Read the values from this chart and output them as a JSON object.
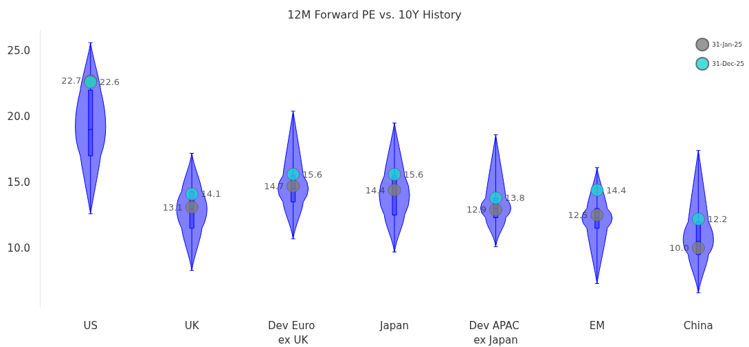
{
  "chart_data": {
    "type": "box",
    "title": "12M Forward PE vs. 10Y History",
    "categories": [
      "US",
      "UK",
      "Dev Euro ex UK",
      "Japan",
      "Dev APAC ex Japan",
      "EM",
      "China"
    ],
    "color": "#0000ff",
    "boxes": [
      {
        "low": 12.6,
        "q1": 17,
        "median": 19,
        "q3": 22,
        "high": 25.6
      },
      {
        "low": 8.3,
        "q1": 11.5,
        "median": 13,
        "q3": 14.3,
        "high": 17.2
      },
      {
        "low": 10.7,
        "q1": 13.5,
        "median": 14.5,
        "q3": 15.5,
        "high": 20.4
      },
      {
        "low": 9.7,
        "q1": 12.5,
        "median": 14,
        "q3": 15.5,
        "high": 19.5
      },
      {
        "low": 10.1,
        "q1": 12.3,
        "median": 13,
        "q3": 13.8,
        "high": 18.6
      },
      {
        "low": 7.3,
        "q1": 11.5,
        "median": 12.3,
        "q3": 13,
        "high": 16.1
      },
      {
        "low": 6.6,
        "q1": 9.5,
        "median": 10.5,
        "q3": 12,
        "high": 17.4
      }
    ],
    "series": [
      {
        "name": "31-Jan-25",
        "type": "scatter",
        "color": "#808080",
        "x": [
          "US",
          "UK",
          "Dev Euro ex UK",
          "Japan",
          "Dev APAC ex Japan",
          "EM",
          "China"
        ],
        "values": [
          22.7,
          13.1,
          14.7,
          14.4,
          12.9,
          12.5,
          10.0
        ],
        "value_labels": [
          "22.7",
          "13.1",
          "14.7",
          "14.4",
          "12.9",
          "12.5",
          "10.0"
        ]
      },
      {
        "name": "31-Dec-25",
        "type": "scatter",
        "color": "#1fd3d6",
        "x": [
          "US",
          "UK",
          "Dev Euro ex UK",
          "Japan",
          "Dev APAC ex Japan",
          "EM",
          "China"
        ],
        "values": [
          22.6,
          14.1,
          15.6,
          15.6,
          13.8,
          14.4,
          12.2
        ],
        "value_labels": [
          "22.6",
          "14.1",
          "15.6",
          "15.6",
          "13.8",
          "14.4",
          "12.2"
        ]
      }
    ],
    "ylim": [
      5.5,
      26.5
    ],
    "yticks": [
      {
        "value": 10,
        "label": "10.0"
      },
      {
        "value": 15,
        "label": "15.0"
      },
      {
        "value": 20,
        "label": "20.0"
      },
      {
        "value": 25,
        "label": "25.0"
      }
    ],
    "grid": false,
    "legend": "top right",
    "marker": "circle"
  }
}
